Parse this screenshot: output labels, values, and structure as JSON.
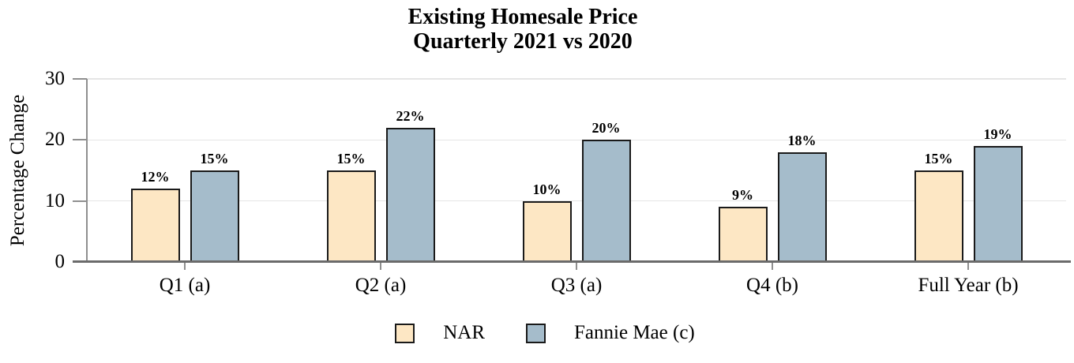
{
  "title": {
    "line1": "Existing Homesale Price",
    "line2": "Quarterly 2021 vs 2020"
  },
  "chart_data": {
    "type": "bar",
    "title": "Existing Homesale Price Quarterly 2021 vs 2020",
    "title_lines": [
      "Existing Homesale Price",
      "Quarterly 2021 vs 2020"
    ],
    "categories": [
      "Q1 (a)",
      "Q2 (a)",
      "Q3 (a)",
      "Q4 (b)",
      "Full Year (b)"
    ],
    "series": [
      {
        "name": "NAR",
        "color": "#FDE7C4",
        "values": [
          12,
          15,
          10,
          9,
          15
        ],
        "labels": [
          "12%",
          "15%",
          "10%",
          "9%",
          "15%"
        ]
      },
      {
        "name": "Fannie Mae (c)",
        "color": "#A5BCCB",
        "values": [
          15,
          22,
          20,
          18,
          19
        ],
        "labels": [
          "15%",
          "22%",
          "20%",
          "18%",
          "19%"
        ]
      }
    ],
    "xlabel": "",
    "ylabel": "Percentage Change",
    "ylim": [
      0,
      30
    ],
    "y_ticks": [
      0,
      10,
      20,
      30
    ],
    "y_tick_labels": [
      "0",
      "10",
      "20",
      "30"
    ],
    "grid": "horizontal",
    "legend_position": "bottom",
    "colors": {
      "bar_border": "#1a1a1a",
      "axis_line": "#8f8f8f",
      "baseline": "#6b6b6b",
      "gridline": "#e5e5e5",
      "text": "#000000"
    }
  }
}
